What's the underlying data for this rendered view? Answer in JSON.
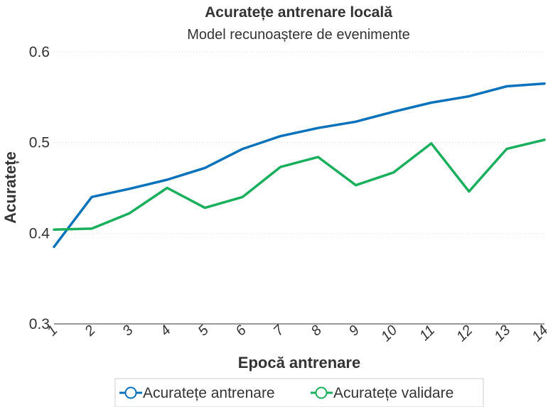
{
  "chart_data": {
    "type": "line",
    "title": "Acuratețe antrenare locală",
    "subtitle": "Model recunoaștere de evenimente",
    "xlabel": "Epocă antrenare",
    "ylabel": "Acuratețe",
    "x": [
      1,
      2,
      3,
      4,
      5,
      6,
      7,
      8,
      9,
      10,
      11,
      12,
      13,
      14
    ],
    "ylim": [
      0.3,
      0.6
    ],
    "yticks": [
      0.3,
      0.4,
      0.5,
      0.6
    ],
    "ytick_labels": [
      "0.3",
      "0.4",
      "0.5",
      "0.6"
    ],
    "grid": true,
    "legend_position": "bottom",
    "series": [
      {
        "name": "Acuratețe antrenare",
        "color": "#0a72ba",
        "values": [
          0.385,
          0.44,
          0.449,
          0.459,
          0.472,
          0.493,
          0.507,
          0.516,
          0.523,
          0.534,
          0.544,
          0.551,
          0.562,
          0.565
        ]
      },
      {
        "name": "Acuratețe validare",
        "color": "#1aaf5d",
        "values": [
          0.404,
          0.405,
          0.422,
          0.45,
          0.428,
          0.44,
          0.473,
          0.484,
          0.453,
          0.467,
          0.499,
          0.446,
          0.493,
          0.503
        ]
      }
    ]
  }
}
